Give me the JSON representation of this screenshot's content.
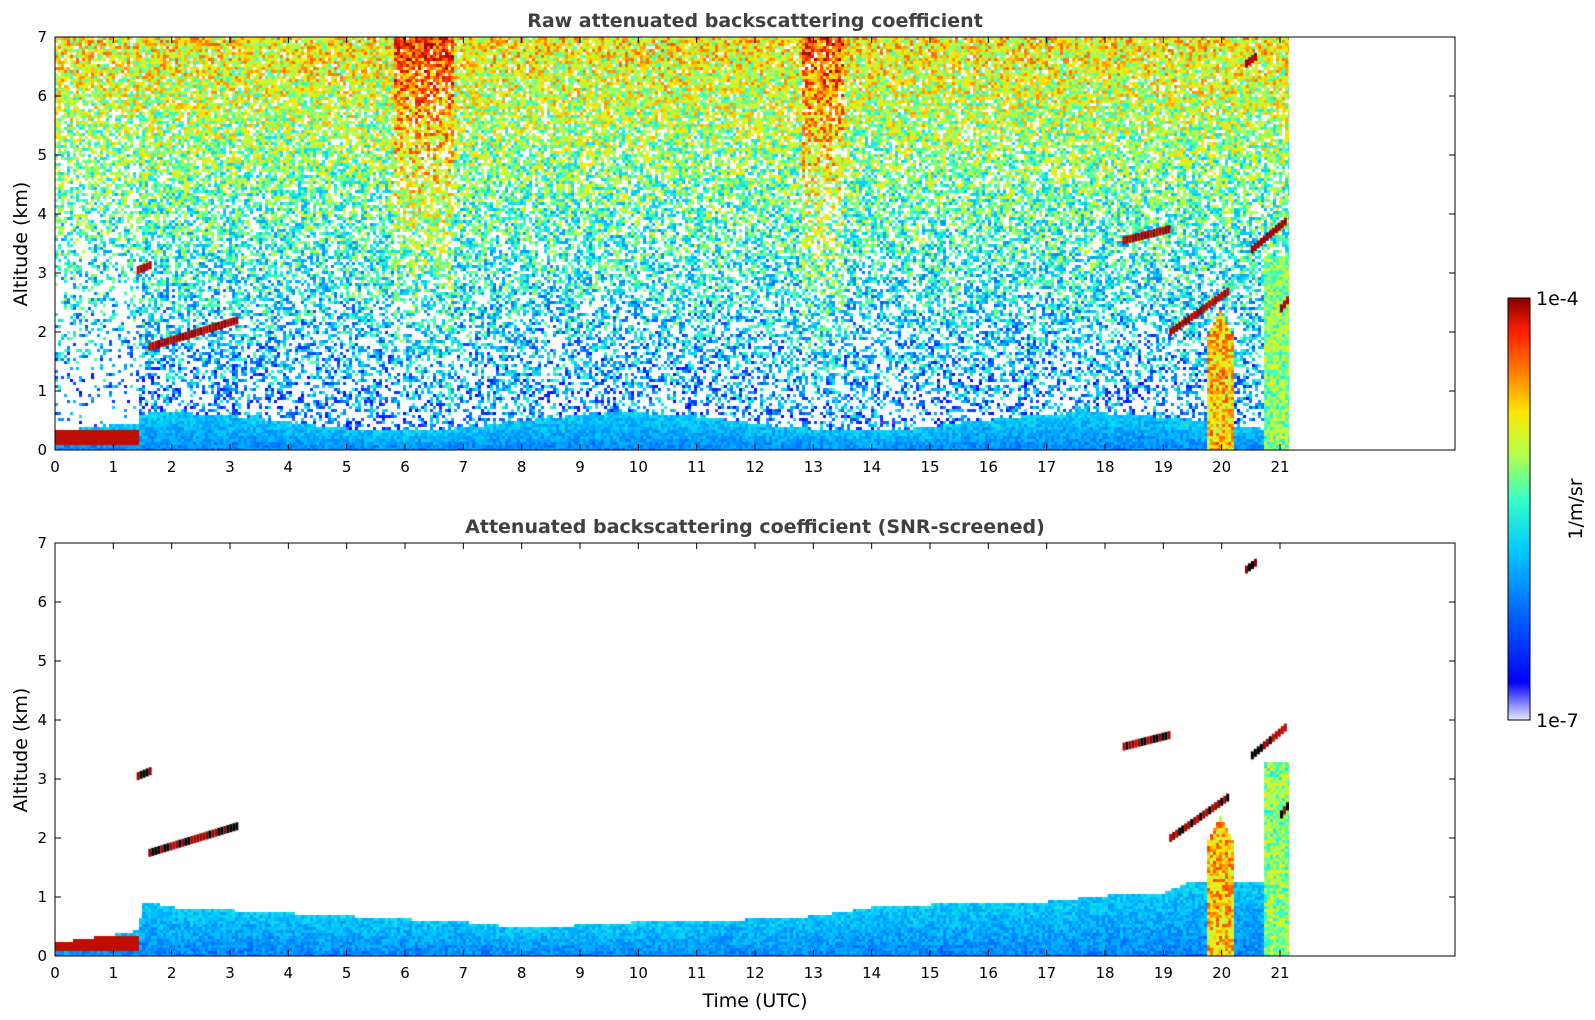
{
  "chart_data": [
    {
      "type": "heatmap",
      "panel_id": "raw",
      "title": "Raw attenuated backscattering coefficient",
      "xlabel": "",
      "ylabel": "Altitude (km)",
      "xlim": [
        0,
        24
      ],
      "ylim": [
        0,
        7
      ],
      "x_ticks": [
        "0",
        "1",
        "2",
        "3",
        "4",
        "5",
        "6",
        "7",
        "8",
        "9",
        "10",
        "11",
        "12",
        "13",
        "14",
        "15",
        "16",
        "17",
        "18",
        "19",
        "20",
        "21"
      ],
      "y_ticks": [
        "0",
        "1",
        "2",
        "3",
        "4",
        "5",
        "6",
        "7"
      ],
      "data_end_time": 21.15,
      "screened": false,
      "features": [
        {
          "name": "boundary layer",
          "t": [
            0,
            21.15
          ],
          "z": [
            0,
            0.45
          ]
        },
        {
          "name": "low cloud",
          "t": [
            0,
            1.4
          ],
          "z": [
            0.1,
            0.35
          ],
          "value": "1e-4"
        },
        {
          "name": "cloud",
          "t": [
            1.6,
            3.1
          ],
          "z": [
            1.7,
            2.2
          ],
          "value": "1e-4"
        },
        {
          "name": "cloud",
          "t": [
            1.4,
            1.65
          ],
          "z": [
            3.05,
            3.15
          ],
          "value": "1e-4"
        },
        {
          "name": "cloud",
          "t": [
            18.3,
            21.15
          ],
          "z": [
            2.0,
            4.0
          ],
          "value": "1e-4"
        },
        {
          "name": "cloud",
          "t": [
            20.4,
            20.6
          ],
          "z": [
            6.55,
            6.7
          ],
          "value": "1e-4"
        },
        {
          "name": "precipitation",
          "t": [
            19.7,
            20.2
          ],
          "z": [
            0,
            2.5
          ]
        },
        {
          "name": "precipitation",
          "t": [
            20.7,
            21.15
          ],
          "z": [
            0,
            3.5
          ]
        }
      ]
    },
    {
      "type": "heatmap",
      "panel_id": "screened",
      "title": "Attenuated backscattering coefficient (SNR-screened)",
      "xlabel": "Time (UTC)",
      "ylabel": "Altitude (km)",
      "xlim": [
        0,
        24
      ],
      "ylim": [
        0,
        7
      ],
      "x_ticks": [
        "0",
        "1",
        "2",
        "3",
        "4",
        "5",
        "6",
        "7",
        "8",
        "9",
        "10",
        "11",
        "12",
        "13",
        "14",
        "15",
        "16",
        "17",
        "18",
        "19",
        "20",
        "21"
      ],
      "y_ticks": [
        "0",
        "1",
        "2",
        "3",
        "4",
        "5",
        "6",
        "7"
      ],
      "data_end_time": 21.15,
      "screened": true,
      "boundary_layer_top": [
        [
          0,
          0.25
        ],
        [
          1.4,
          0.45
        ],
        [
          1.5,
          0.95
        ],
        [
          2,
          0.85
        ],
        [
          3,
          0.8
        ],
        [
          4,
          0.75
        ],
        [
          5,
          0.7
        ],
        [
          6,
          0.65
        ],
        [
          7,
          0.6
        ],
        [
          8,
          0.5
        ],
        [
          9,
          0.55
        ],
        [
          10,
          0.6
        ],
        [
          11,
          0.62
        ],
        [
          12,
          0.65
        ],
        [
          13,
          0.7
        ],
        [
          14,
          0.85
        ],
        [
          15,
          0.9
        ],
        [
          16,
          0.9
        ],
        [
          17,
          0.95
        ],
        [
          18,
          1.05
        ],
        [
          19,
          1.1
        ],
        [
          19.5,
          1.3
        ],
        [
          21.15,
          1.3
        ]
      ]
    }
  ],
  "colorbar": {
    "label": "1/m/sr",
    "max_label": "1e-4",
    "min_label": "1e-7",
    "scale": "log",
    "colormap": [
      "#e8e8ff",
      "#0000ff",
      "#0077ff",
      "#00c8ff",
      "#33ffc8",
      "#b4ff4b",
      "#ffe600",
      "#ff7800",
      "#ff1e00",
      "#8b0000"
    ]
  }
}
